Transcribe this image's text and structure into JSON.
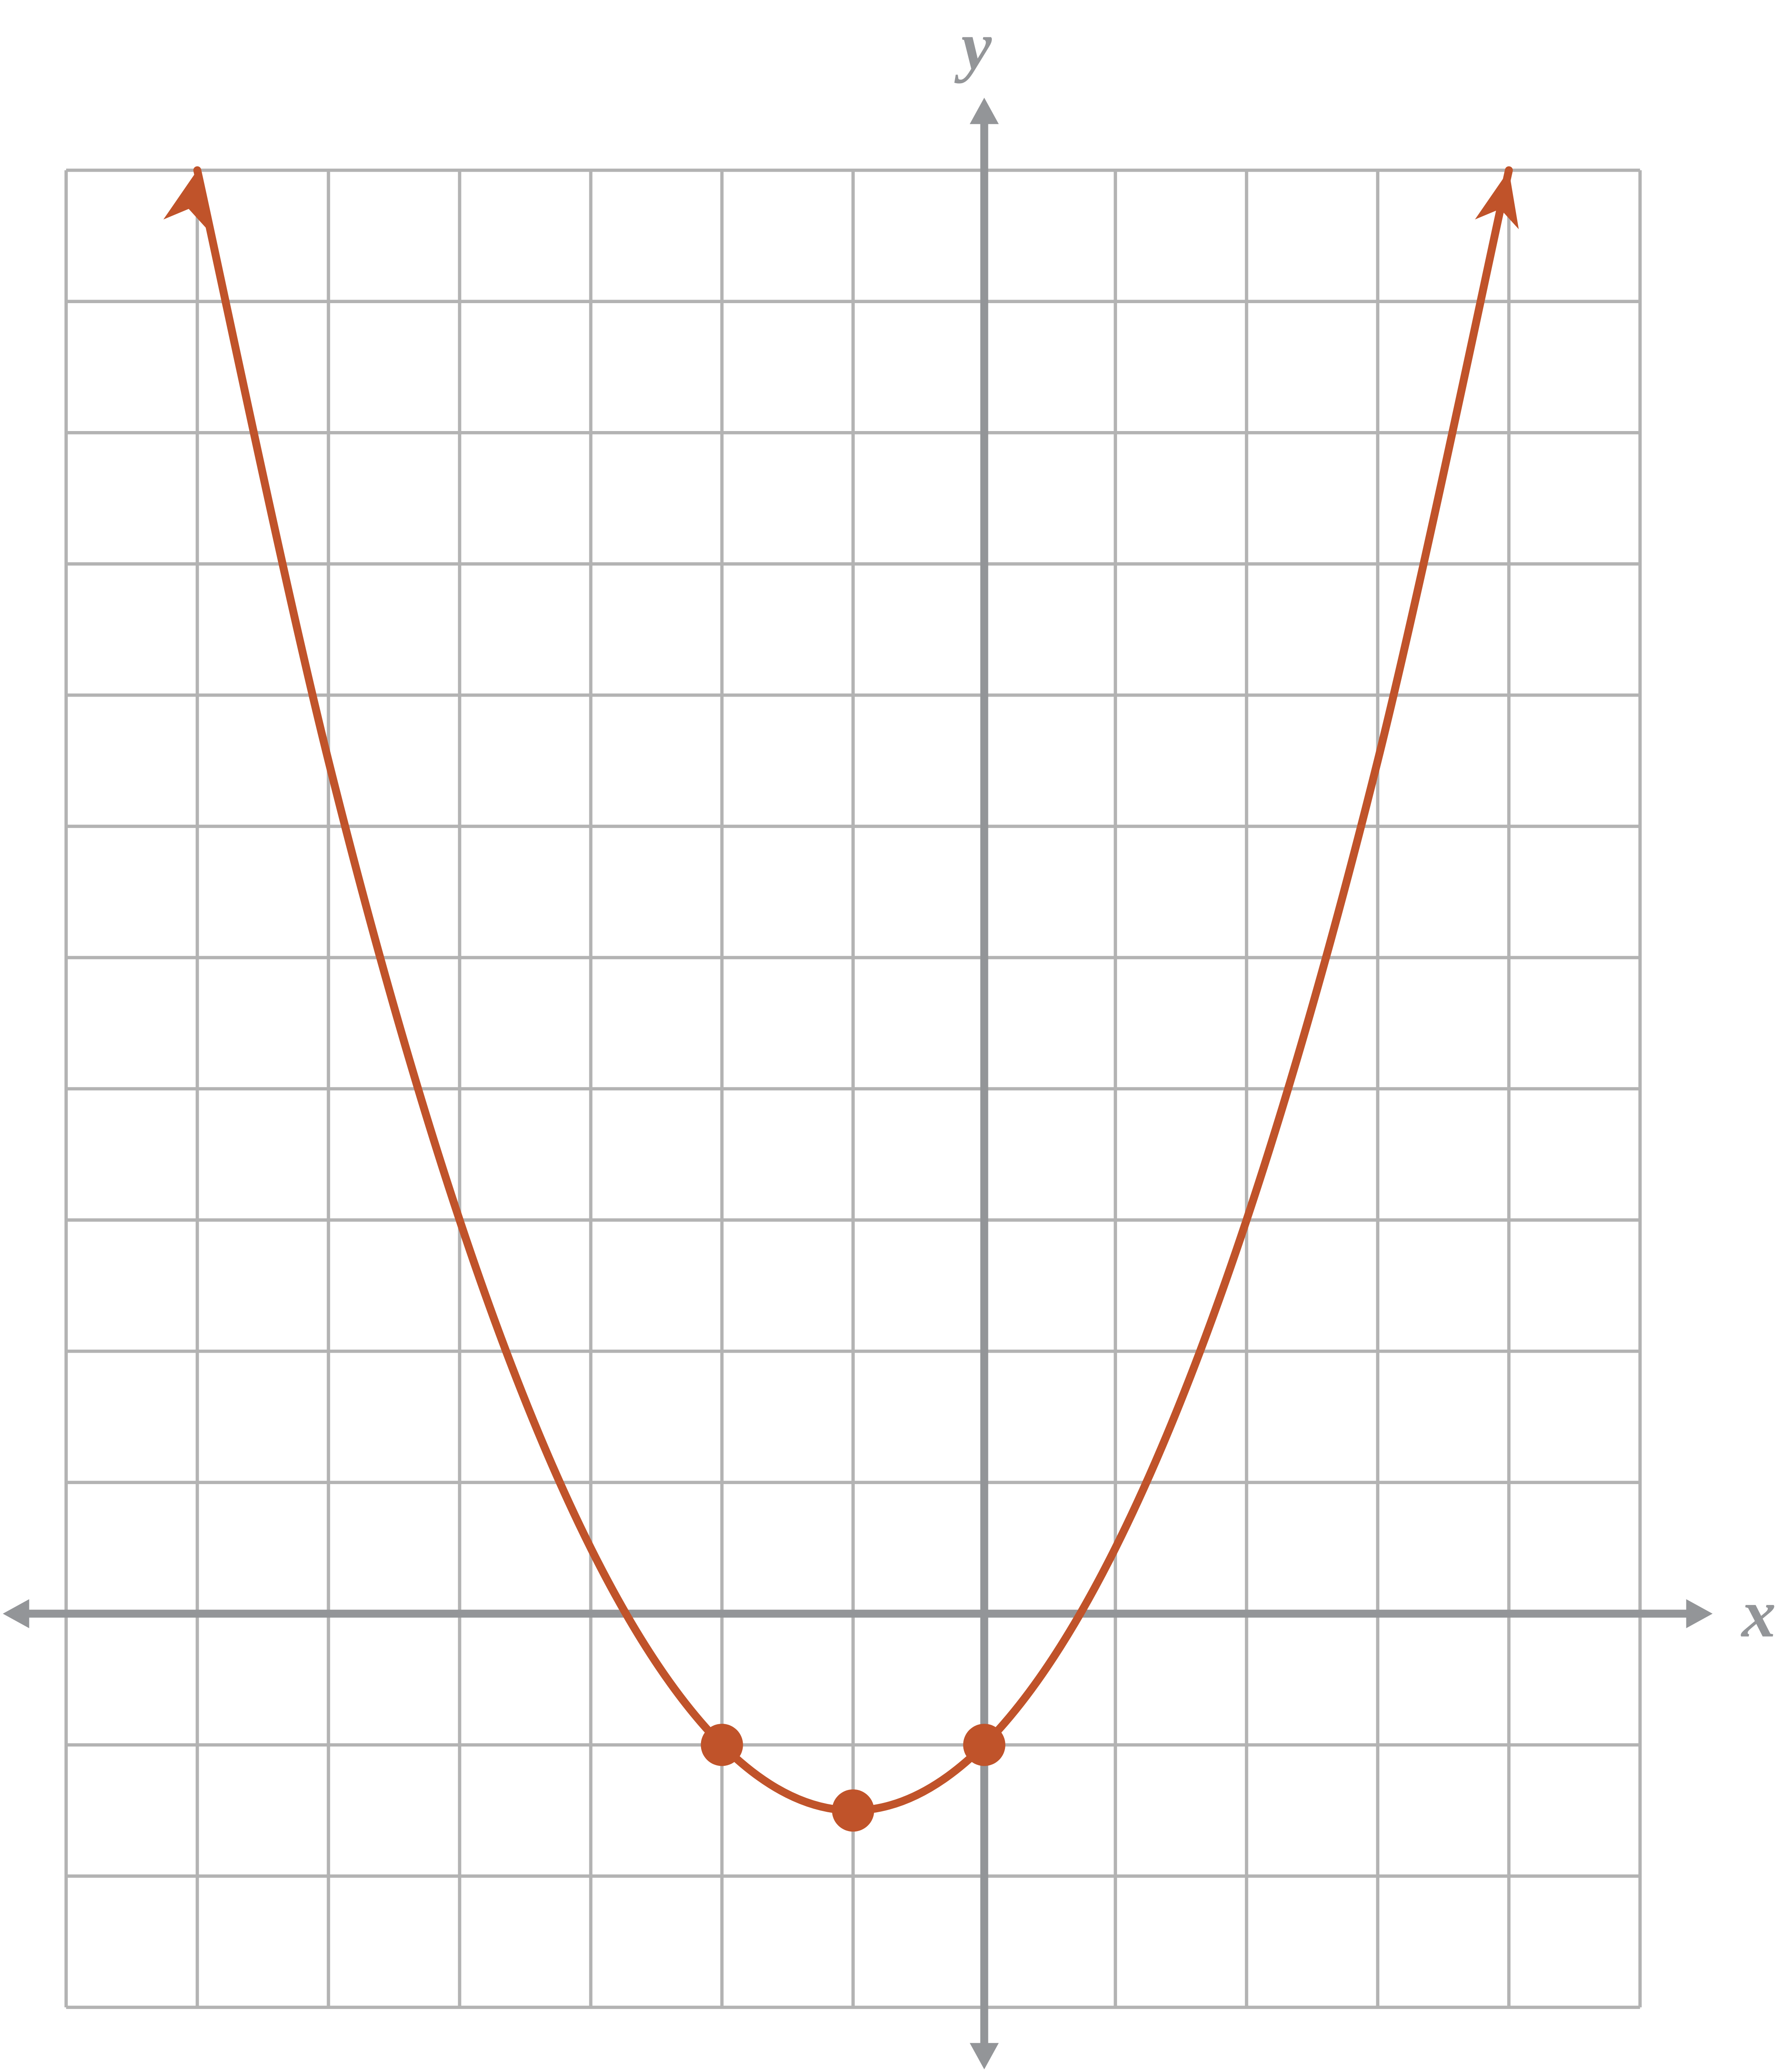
{
  "chart_data": {
    "type": "line",
    "x_label": "x",
    "y_label": "y",
    "xlim": [
      -7,
      5
    ],
    "ylim": [
      -3,
      11
    ],
    "xticks": [
      -7,
      -6,
      -5,
      -4,
      -3,
      -2,
      -1,
      0,
      1,
      2,
      3,
      4,
      5
    ],
    "yticks": [
      -3,
      -2,
      -1,
      0,
      1,
      2,
      3,
      4,
      5,
      6,
      7,
      8,
      9,
      10,
      11
    ],
    "grid": true,
    "series": [
      {
        "color": "#c0532a",
        "x": [
          -6,
          -5,
          -4,
          -3,
          -2,
          -1,
          0,
          1,
          2,
          3,
          4
        ],
        "values": [
          11,
          6.5,
          3,
          0.5,
          -1,
          -1.5,
          -1,
          0.5,
          3,
          6.5,
          11
        ]
      },
      {
        "color": "#c0532a",
        "x": [
          -2,
          -1,
          0
        ],
        "values": [
          -1,
          -1.5,
          -1
        ],
        "markers": true
      }
    ]
  }
}
